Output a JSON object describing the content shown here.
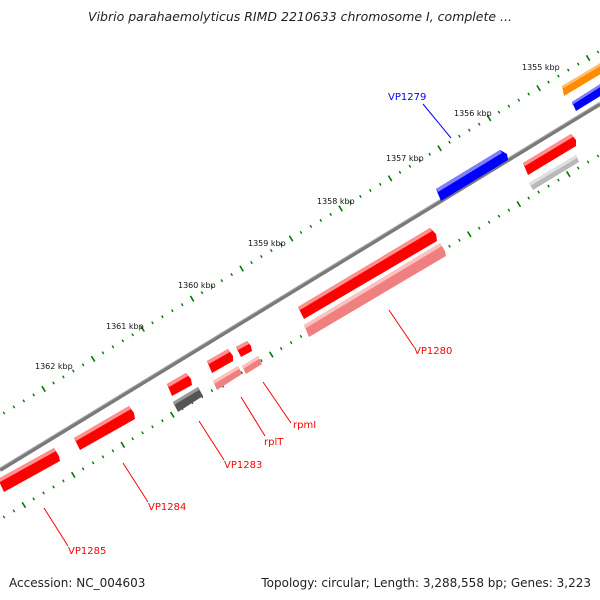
{
  "title": "Vibrio parahaemolyticus RIMD 2210633 chromosome I, complete ...",
  "accession_text": "Accession: NC_004603",
  "topology_text": "Topology: circular; Length: 3,288,558 bp; Genes: 3,223",
  "kbp_labels": [
    "1355 kbp",
    "1356 kbp",
    "1357 kbp",
    "1358 kbp",
    "1359 kbp",
    "1360 kbp",
    "1361 kbp",
    "1362 kbp"
  ],
  "genes": [
    {
      "id": "VP1279",
      "color": "#0000ff"
    },
    {
      "id": "VP1280",
      "color": "#ff0000"
    },
    {
      "id": "rpmI",
      "color": "#ff0000"
    },
    {
      "id": "rplT",
      "color": "#ff0000"
    },
    {
      "id": "VP1283",
      "color": "#ff0000"
    },
    {
      "id": "VP1284",
      "color": "#ff0000"
    },
    {
      "id": "VP1285",
      "color": "#ff0000"
    }
  ],
  "colors": {
    "backbone": "#808080",
    "tick": "#007a00",
    "forward_gene": "#ff0000",
    "unlabeled_top": "#ff8c00",
    "blue_gene": "#0000ff",
    "light_red": "#f08080",
    "dark_gray": "#555555",
    "light_gray": "#b8b8b8"
  }
}
